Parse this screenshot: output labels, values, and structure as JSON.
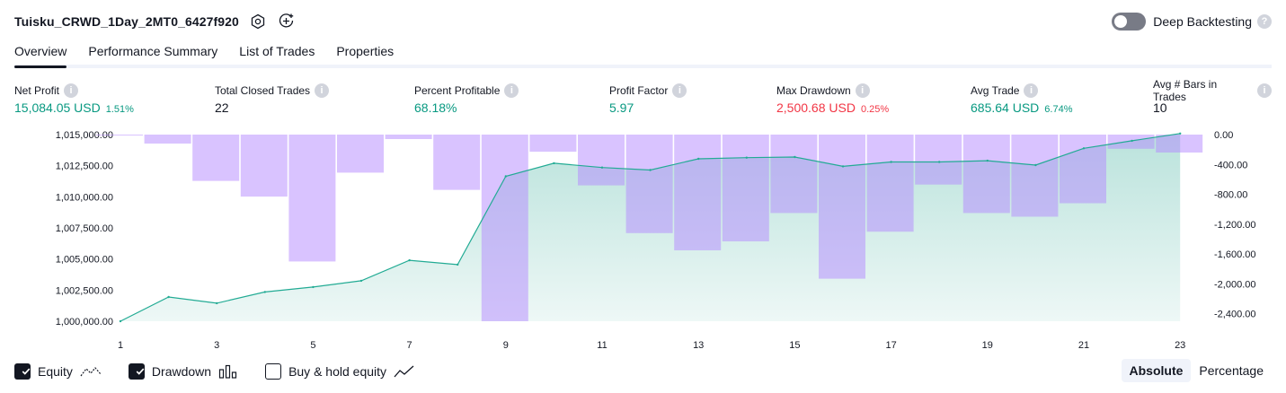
{
  "header": {
    "title": "Tuisku_CRWD_1Day_2MT0_6427f920",
    "deep_backtesting_label": "Deep Backtesting",
    "deep_backtesting_enabled": false
  },
  "tabs": [
    {
      "label": "Overview",
      "active": true
    },
    {
      "label": "Performance Summary",
      "active": false
    },
    {
      "label": "List of Trades",
      "active": false
    },
    {
      "label": "Properties",
      "active": false
    }
  ],
  "metrics": [
    {
      "label": "Net Profit",
      "value": "15,084.05 USD",
      "sub": "1.51%",
      "color": "green"
    },
    {
      "label": "Total Closed Trades",
      "value": "22",
      "sub": "",
      "color": "dark"
    },
    {
      "label": "Percent Profitable",
      "value": "68.18%",
      "sub": "",
      "color": "green"
    },
    {
      "label": "Profit Factor",
      "value": "5.97",
      "sub": "",
      "color": "green"
    },
    {
      "label": "Max Drawdown",
      "value": "2,500.68 USD",
      "sub": "0.25%",
      "color": "red"
    },
    {
      "label": "Avg Trade",
      "value": "685.64 USD",
      "sub": "6.74%",
      "color": "green"
    },
    {
      "label": "Avg # Bars in Trades",
      "value": "10",
      "sub": "",
      "color": "dark"
    }
  ],
  "chart_data": {
    "type": "area",
    "x_ticks": [
      "1",
      "3",
      "5",
      "7",
      "9",
      "11",
      "13",
      "15",
      "17",
      "19",
      "21",
      "23"
    ],
    "y_left_ticks": [
      "1,015,000.00",
      "1,012,500.00",
      "1,010,000.00",
      "1,007,500.00",
      "1,005,000.00",
      "1,002,500.00",
      "1,000,000.00"
    ],
    "y_left_range": [
      1000000,
      1015000
    ],
    "y_right_ticks": [
      "0.00",
      "-400.00",
      "-800.00",
      "-1,200.00",
      "-1,600.00",
      "-2,000.00",
      "-2,400.00"
    ],
    "y_right_range": [
      -2500,
      0
    ],
    "series": [
      {
        "name": "Equity",
        "type": "area",
        "axis": "left",
        "x": [
          1,
          2,
          3,
          4,
          5,
          6,
          7,
          8,
          9,
          10,
          11,
          12,
          13,
          14,
          15,
          16,
          17,
          18,
          19,
          20,
          21,
          22,
          23
        ],
        "values": [
          1000000,
          1001950,
          1001450,
          1002350,
          1002750,
          1003250,
          1004900,
          1004550,
          1011650,
          1012700,
          1012350,
          1012150,
          1013050,
          1013150,
          1013200,
          1012450,
          1012800,
          1012800,
          1012900,
          1012550,
          1013900,
          1014500,
          1015084.05
        ]
      },
      {
        "name": "Drawdown",
        "type": "bar",
        "axis": "right",
        "x": [
          1,
          2,
          3,
          4,
          5,
          6,
          7,
          8,
          9,
          10,
          11,
          12,
          13,
          14,
          15,
          16,
          17,
          18,
          19,
          20,
          21,
          22,
          23
        ],
        "values": [
          0,
          -120,
          -620,
          -830,
          -1700,
          -510,
          -60,
          -740,
          -2500,
          -230,
          -680,
          -1320,
          -1550,
          -1430,
          -1050,
          -1930,
          -1300,
          -670,
          -1050,
          -1100,
          -920,
          -190,
          -240
        ]
      }
    ],
    "colors": {
      "equity_line": "#22ab94",
      "equity_fill": "#089981",
      "drawdown": "#b388ff"
    }
  },
  "legend": [
    {
      "label": "Equity",
      "checked": true,
      "icon": "equity-line-icon"
    },
    {
      "label": "Drawdown",
      "checked": true,
      "icon": "drawdown-bars-icon"
    },
    {
      "label": "Buy & hold equity",
      "checked": false,
      "icon": "buy-hold-line-icon"
    }
  ],
  "modes": [
    {
      "label": "Absolute",
      "active": true
    },
    {
      "label": "Percentage",
      "active": false
    }
  ]
}
